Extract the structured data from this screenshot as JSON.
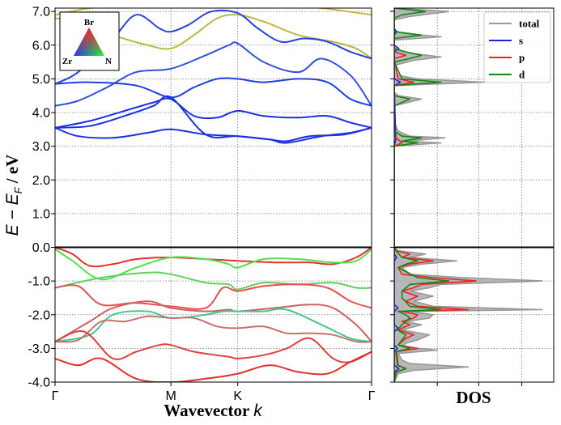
{
  "chart_data": [
    {
      "type": "line",
      "subtype": "band-structure",
      "xlabel_prefix": "Wavevector ",
      "xlabel_var": "k",
      "ylabel_parts": [
        "E − E",
        "F",
        " / eV"
      ],
      "ylim": [
        -4.0,
        7.1
      ],
      "y_ticks": [
        "-4.0",
        "-3.0",
        "-2.0",
        "-1.0",
        "0.0",
        "1.0",
        "2.0",
        "3.0",
        "4.0",
        "5.0",
        "6.0",
        "7.0"
      ],
      "y_tick_values": [
        -4,
        -3,
        -2,
        -1,
        0,
        1,
        2,
        3,
        4,
        5,
        6,
        7
      ],
      "k_points": [
        "Γ",
        "M",
        "K",
        "Γ"
      ],
      "k_positions": [
        0,
        1,
        1.577,
        2.732
      ],
      "fermi_level": 0.0,
      "grid": true,
      "projection_triangle": {
        "top": "Br",
        "left": "Zr",
        "right": "N"
      },
      "bands": [
        {
          "color": "#c8b840",
          "k": [
            0,
            0.3,
            0.7,
            1.0,
            1.3,
            1.577,
            1.9,
            2.3,
            2.732
          ],
          "E": [
            6.9,
            7.1,
            7.2,
            7.2,
            7.2,
            7.2,
            7.2,
            7.1,
            6.9
          ]
        },
        {
          "color": "#b8b840",
          "k": [
            0,
            0.2,
            0.5,
            0.8,
            1.0,
            1.2,
            1.4,
            1.577,
            1.8,
            2.1,
            2.4,
            2.6,
            2.732
          ],
          "E": [
            6.8,
            6.7,
            6.3,
            6.0,
            5.9,
            6.3,
            6.8,
            6.9,
            6.7,
            6.3,
            6.1,
            5.9,
            5.6
          ]
        },
        {
          "color": "#2a40e0",
          "k": [
            0,
            0.2,
            0.5,
            0.7,
            0.9,
            1.0,
            1.15,
            1.35,
            1.577,
            1.75,
            1.95,
            2.15,
            2.35,
            2.55,
            2.732
          ],
          "E": [
            4.85,
            5.2,
            6.2,
            6.9,
            6.5,
            6.4,
            6.6,
            7.0,
            6.95,
            6.5,
            6.1,
            6.2,
            6.1,
            5.8,
            5.6
          ]
        },
        {
          "color": "#3050e0",
          "k": [
            0,
            0.2,
            0.45,
            0.7,
            1.0,
            1.3,
            1.5,
            1.577,
            1.8,
            2.1,
            2.3,
            2.55,
            2.732
          ],
          "E": [
            4.2,
            4.35,
            4.75,
            5.2,
            5.3,
            5.7,
            6.0,
            6.05,
            5.5,
            5.2,
            5.6,
            5.1,
            4.2
          ]
        },
        {
          "color": "#2040e0",
          "k": [
            0,
            0.3,
            0.7,
            1.0,
            1.2,
            1.4,
            1.577,
            1.8,
            2.1,
            2.35,
            2.55,
            2.732
          ],
          "E": [
            4.85,
            4.9,
            4.8,
            4.45,
            4.75,
            5.0,
            5.0,
            4.9,
            5.0,
            4.9,
            4.4,
            4.2
          ]
        },
        {
          "color": "#1a30e0",
          "k": [
            0,
            0.3,
            0.6,
            0.85,
            1.0,
            1.2,
            1.4,
            1.577,
            1.8,
            2.1,
            2.35,
            2.55,
            2.732
          ],
          "E": [
            3.55,
            3.75,
            4.05,
            4.3,
            4.4,
            3.9,
            3.85,
            4.05,
            3.9,
            3.85,
            3.9,
            3.7,
            3.55
          ]
        },
        {
          "color": "#1a30e0",
          "k": [
            0,
            0.3,
            0.6,
            0.85,
            1.0,
            1.3,
            1.577,
            1.85,
            2.0,
            2.2,
            2.5,
            2.732
          ],
          "E": [
            3.55,
            3.6,
            3.9,
            4.2,
            4.45,
            3.35,
            3.3,
            3.2,
            3.15,
            3.3,
            3.35,
            3.55
          ]
        },
        {
          "color": "#1a30e0",
          "k": [
            0,
            0.2,
            0.5,
            0.8,
            1.0,
            1.3,
            1.577,
            1.85,
            2.0,
            2.3,
            2.55,
            2.732
          ],
          "E": [
            3.55,
            3.3,
            3.25,
            3.4,
            3.5,
            3.35,
            3.3,
            3.2,
            3.1,
            3.3,
            3.4,
            3.55
          ]
        },
        {
          "color": "#e83030",
          "k": [
            0,
            0.15,
            0.3,
            0.5,
            0.7,
            1.0,
            1.3,
            1.577,
            1.9,
            2.2,
            2.4,
            2.6,
            2.732
          ],
          "E": [
            0.0,
            -0.2,
            -0.55,
            -0.5,
            -0.35,
            -0.3,
            -0.35,
            -0.4,
            -0.45,
            -0.45,
            -0.5,
            -0.3,
            0.0
          ]
        },
        {
          "color": "#50e050",
          "k": [
            0,
            0.15,
            0.4,
            0.7,
            1.0,
            1.3,
            1.5,
            1.577,
            1.8,
            2.1,
            2.4,
            2.6,
            2.732
          ],
          "E": [
            -0.05,
            -0.4,
            -0.95,
            -0.6,
            -0.3,
            -0.35,
            -0.5,
            -0.6,
            -0.35,
            -0.35,
            -0.45,
            -0.4,
            -0.05
          ]
        },
        {
          "color": "#60d060",
          "k": [
            0,
            0.4,
            0.8,
            1.0,
            1.3,
            1.5,
            1.577,
            1.8,
            2.1,
            2.4,
            2.6,
            2.732
          ],
          "E": [
            -1.2,
            -0.9,
            -0.75,
            -0.8,
            -1.05,
            -1.1,
            -1.25,
            -1.05,
            -1.1,
            -1.05,
            -1.2,
            -1.2
          ]
        },
        {
          "color": "#e85050",
          "k": [
            0,
            0.2,
            0.4,
            0.7,
            1.0,
            1.3,
            1.45,
            1.577,
            1.8,
            2.1,
            2.35,
            2.55,
            2.732
          ],
          "E": [
            -1.2,
            -1.15,
            -1.7,
            -1.65,
            -1.75,
            -1.8,
            -1.2,
            -1.3,
            -1.15,
            -1.1,
            -1.2,
            -1.6,
            -1.8
          ]
        },
        {
          "color": "#d06060",
          "k": [
            0,
            0.3,
            0.5,
            0.8,
            1.0,
            1.3,
            1.5,
            1.577,
            1.9,
            2.2,
            2.4,
            2.6,
            2.732
          ],
          "E": [
            -2.8,
            -2.2,
            -1.8,
            -1.6,
            -1.8,
            -1.9,
            -1.85,
            -1.9,
            -1.8,
            -1.7,
            -1.8,
            -2.3,
            -2.8
          ]
        },
        {
          "color": "#40c890",
          "k": [
            0,
            0.3,
            0.5,
            0.8,
            1.0,
            1.3,
            1.45,
            1.577,
            1.8,
            2.0,
            2.3,
            2.55,
            2.732
          ],
          "E": [
            -2.8,
            -2.6,
            -2.0,
            -1.9,
            -2.1,
            -2.0,
            -1.9,
            -1.9,
            -1.9,
            -1.85,
            -2.3,
            -2.7,
            -2.8
          ]
        },
        {
          "color": "#c87070",
          "k": [
            0,
            0.2,
            0.4,
            0.6,
            0.8,
            1.0,
            1.2,
            1.4,
            1.577,
            1.8,
            2.0,
            2.2,
            2.4,
            2.6,
            2.732
          ],
          "E": [
            -2.8,
            -2.75,
            -2.2,
            -2.2,
            -2.05,
            -2.1,
            -2.1,
            -2.35,
            -2.4,
            -2.35,
            -2.55,
            -2.55,
            -2.6,
            -2.8,
            -2.8
          ]
        },
        {
          "color": "#e04040",
          "k": [
            0,
            0.25,
            0.5,
            0.7,
            0.9,
            1.0,
            1.2,
            1.5,
            1.577,
            1.8,
            2.0,
            2.2,
            2.4,
            2.55,
            2.732
          ],
          "E": [
            -2.8,
            -2.5,
            -3.3,
            -3.1,
            -2.9,
            -2.9,
            -3.1,
            -3.25,
            -3.3,
            -3.2,
            -3.0,
            -2.7,
            -3.3,
            -3.4,
            -3.1
          ]
        },
        {
          "color": "#e03030",
          "k": [
            0,
            0.2,
            0.4,
            0.7,
            1.0,
            1.3,
            1.577,
            1.85,
            2.1,
            2.35,
            2.55,
            2.732
          ],
          "E": [
            -3.3,
            -3.5,
            -3.3,
            -3.9,
            -4.0,
            -3.9,
            -3.75,
            -3.5,
            -3.7,
            -3.75,
            -3.4,
            -3.1
          ]
        }
      ]
    },
    {
      "type": "area",
      "subtype": "density-of-states",
      "xlabel": "DOS",
      "ylim": [
        -4.0,
        7.1
      ],
      "grid": true,
      "legend_position": "top-right",
      "legend": [
        {
          "label": "total",
          "color": "#999999"
        },
        {
          "label": "s",
          "color": "#2222dd"
        },
        {
          "label": "p",
          "color": "#ee2222"
        },
        {
          "label": "d",
          "color": "#118811"
        }
      ],
      "series": [
        {
          "name": "total",
          "color": "#999999",
          "fill": "#aaaaaa",
          "E": [
            -4.0,
            -3.75,
            -3.65,
            -3.55,
            -3.45,
            -3.35,
            -3.15,
            -3.05,
            -2.95,
            -2.85,
            -2.75,
            -2.6,
            -2.45,
            -2.3,
            -2.2,
            -2.1,
            -2.0,
            -1.9,
            -1.85,
            -1.75,
            -1.6,
            -1.45,
            -1.3,
            -1.2,
            -1.1,
            -1.0,
            -0.9,
            -0.8,
            -0.6,
            -0.5,
            -0.4,
            -0.3,
            -0.2,
            -0.1,
            0.0,
            3.0,
            3.1,
            3.15,
            3.25,
            3.3,
            3.45,
            3.6,
            3.75,
            4.2,
            4.4,
            4.5,
            4.6,
            4.8,
            4.9,
            5.0,
            5.1,
            5.4,
            5.55,
            5.65,
            5.75,
            5.85,
            5.95,
            6.15,
            6.25,
            6.35,
            6.45,
            6.75,
            6.85,
            7.0,
            7.1
          ],
          "D": [
            0.0,
            0.05,
            0.25,
            0.95,
            0.2,
            0.1,
            0.05,
            0.55,
            0.1,
            0.15,
            0.3,
            0.45,
            0.1,
            0.35,
            0.15,
            0.45,
            0.5,
            0.2,
            1.9,
            0.5,
            0.25,
            0.5,
            0.2,
            0.45,
            0.6,
            1.9,
            0.9,
            0.2,
            0.1,
            0.35,
            0.8,
            0.2,
            0.4,
            0.05,
            0.0,
            0.0,
            0.6,
            0.15,
            0.65,
            0.2,
            0.05,
            0.02,
            0.0,
            0.0,
            0.35,
            0.05,
            0.0,
            0.0,
            1.15,
            0.3,
            0.05,
            0.0,
            0.25,
            0.6,
            0.25,
            0.05,
            0.0,
            0.0,
            0.6,
            0.1,
            0.0,
            0.0,
            0.2,
            0.7,
            0.0
          ]
        },
        {
          "name": "s",
          "color": "#2222dd",
          "E": [
            -4.0,
            -3.7,
            -3.6,
            -3.5,
            -3.1,
            -3.0,
            -2.9,
            -2.5,
            -2.4,
            -2.3,
            -1.9,
            -1.8,
            -1.7,
            -0.4,
            -0.3,
            -0.2,
            3.0,
            3.2,
            4.8,
            4.9,
            5.0,
            5.8,
            5.9,
            6.0,
            6.3,
            6.4,
            6.5,
            7.0,
            7.1
          ],
          "D": [
            0.0,
            0.0,
            0.06,
            0.0,
            0.0,
            0.04,
            0.0,
            0.0,
            0.05,
            0.0,
            0.0,
            0.05,
            0.0,
            0.0,
            0.03,
            0.0,
            0.0,
            0.02,
            0.0,
            0.08,
            0.0,
            0.0,
            0.06,
            0.0,
            0.0,
            0.03,
            0.0,
            0.0,
            0.0
          ]
        },
        {
          "name": "p",
          "color": "#ee2222",
          "E": [
            -4.0,
            -3.7,
            -3.6,
            -3.5,
            -3.1,
            -3.0,
            -2.9,
            -2.8,
            -2.7,
            -2.6,
            -2.45,
            -2.3,
            -2.2,
            -2.1,
            -2.0,
            -1.9,
            -1.85,
            -1.75,
            -1.6,
            -1.45,
            -1.3,
            -1.2,
            -1.1,
            -1.0,
            -0.9,
            -0.8,
            -0.6,
            -0.5,
            -0.4,
            -0.3,
            -0.2,
            -0.1,
            0.0,
            3.0,
            3.1,
            3.2,
            3.3,
            4.8,
            4.9,
            5.0,
            5.6,
            5.7,
            5.8,
            7.0,
            7.1
          ],
          "D": [
            0.0,
            0.02,
            0.15,
            0.05,
            0.03,
            0.3,
            0.05,
            0.1,
            0.15,
            0.25,
            0.05,
            0.2,
            0.1,
            0.25,
            0.3,
            0.1,
            0.95,
            0.3,
            0.15,
            0.3,
            0.1,
            0.25,
            0.35,
            1.05,
            0.5,
            0.1,
            0.05,
            0.2,
            0.5,
            0.1,
            0.2,
            0.02,
            0.0,
            0.0,
            0.1,
            0.05,
            0.0,
            0.0,
            0.25,
            0.05,
            0.0,
            0.15,
            0.0,
            0.0,
            0.0
          ]
        },
        {
          "name": "d",
          "color": "#118811",
          "E": [
            -4.0,
            -3.7,
            -3.6,
            -3.5,
            -3.1,
            -3.0,
            -2.9,
            -2.75,
            -2.6,
            -2.45,
            -2.3,
            -2.1,
            -2.0,
            -1.9,
            -1.85,
            -1.75,
            -1.5,
            -1.3,
            -1.2,
            -1.1,
            -1.0,
            -0.9,
            -0.6,
            -0.5,
            -0.4,
            -0.3,
            -0.1,
            0.0,
            3.0,
            3.1,
            3.15,
            3.25,
            3.3,
            3.45,
            4.2,
            4.4,
            4.5,
            4.8,
            4.9,
            5.0,
            5.5,
            5.6,
            5.7,
            5.8,
            5.9,
            6.2,
            6.3,
            6.4,
            6.8,
            6.9,
            7.0,
            7.1
          ],
          "D": [
            0.0,
            0.03,
            0.15,
            0.04,
            0.02,
            0.2,
            0.05,
            0.1,
            0.15,
            0.04,
            0.1,
            0.2,
            0.15,
            0.05,
            0.6,
            0.2,
            0.1,
            0.1,
            0.15,
            0.2,
            0.7,
            0.3,
            0.05,
            0.15,
            0.3,
            0.1,
            0.02,
            0.0,
            0.0,
            0.3,
            0.1,
            0.35,
            0.1,
            0.0,
            0.0,
            0.2,
            0.0,
            0.0,
            0.6,
            0.1,
            0.0,
            0.2,
            0.35,
            0.15,
            0.0,
            0.0,
            0.35,
            0.0,
            0.0,
            0.1,
            0.4,
            0.0
          ]
        }
      ]
    }
  ]
}
